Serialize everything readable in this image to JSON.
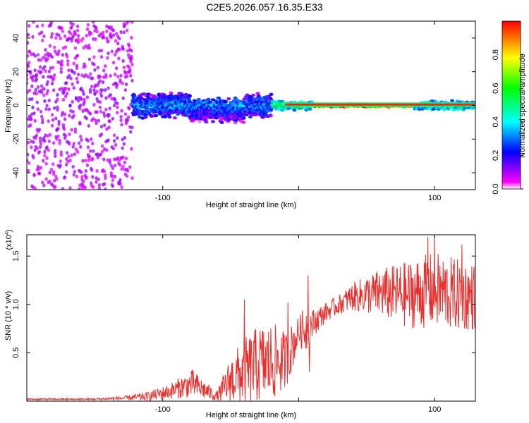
{
  "title": "C2E5.2026.057.16.35.E33",
  "chart_data": [
    {
      "type": "heatmap",
      "name": "spectrogram",
      "xlabel": "Height of straight line (km)",
      "ylabel": "Frequency (Hz)",
      "xlim": [
        -200,
        130
      ],
      "ylim": [
        -50,
        50
      ],
      "xticks": [
        -100,
        0,
        100
      ],
      "xtick_labels": [
        "-100",
        "",
        "100"
      ],
      "yticks": [
        -40,
        -20,
        0,
        20,
        40
      ],
      "ytick_labels": [
        "-40",
        "-20",
        "0",
        "20",
        "40"
      ],
      "colorbar": {
        "label": "Normalized spectral amplitude",
        "range": [
          0,
          1
        ],
        "ticks": [
          0.0,
          0.2,
          0.4,
          0.6,
          0.8
        ],
        "tick_labels": [
          "0.0",
          "0.2",
          "0.4",
          "0.6",
          "0.8"
        ],
        "colors": [
          "#ffffff",
          "#ff00ff",
          "#0000ff",
          "#00ffff",
          "#00ff00",
          "#ffff00",
          "#ff0000"
        ]
      },
      "regions": [
        {
          "x": [
            -200,
            -122
          ],
          "freq_spread": 50,
          "amplitude": 0.12,
          "description": "broadband noise"
        },
        {
          "x": [
            -122,
            -20
          ],
          "freq_spread": 8,
          "amplitude": 0.35
        },
        {
          "x": [
            -20,
            10
          ],
          "freq_spread": 3,
          "amplitude": 0.55
        },
        {
          "x": [
            10,
            85
          ],
          "freq_spread": 1,
          "amplitude": 0.95
        },
        {
          "x": [
            85,
            130
          ],
          "freq_spread": 3,
          "amplitude": 0.5
        }
      ]
    },
    {
      "type": "line",
      "name": "snr",
      "xlabel": "Height of straight line (km)",
      "ylabel": "SNR (10 * v/v)",
      "multiplier_label": "(x10",
      "multiplier_exponent": "4",
      "multiplier_close": ")",
      "xlim": [
        -200,
        130
      ],
      "ylim": [
        0,
        1.72
      ],
      "xticks": [
        -100,
        0,
        100
      ],
      "xtick_labels": [
        "-100",
        "",
        "100"
      ],
      "yticks": [
        0.5,
        1.0,
        1.5
      ],
      "ytick_labels": [
        "0.5",
        "1.0",
        "1.5"
      ],
      "color": "#e8302e",
      "envelope": {
        "x": [
          -200,
          -150,
          -130,
          -110,
          -95,
          -85,
          -78,
          -70,
          -60,
          -50,
          -40,
          -30,
          -20,
          -10,
          -5,
          0,
          5,
          10,
          20,
          30,
          40,
          60,
          80,
          100,
          115,
          130
        ],
        "mean": [
          0.02,
          0.02,
          0.03,
          0.05,
          0.1,
          0.15,
          0.18,
          0.12,
          0.05,
          0.22,
          0.3,
          0.38,
          0.4,
          0.42,
          0.55,
          0.72,
          0.75,
          0.8,
          0.92,
          1.0,
          1.08,
          1.12,
          1.1,
          1.15,
          1.1,
          1.08
        ],
        "spread": [
          0.01,
          0.01,
          0.02,
          0.05,
          0.08,
          0.12,
          0.15,
          0.1,
          0.05,
          0.25,
          0.35,
          0.4,
          0.42,
          0.3,
          0.25,
          0.15,
          0.25,
          0.15,
          0.1,
          0.1,
          0.15,
          0.25,
          0.35,
          0.4,
          0.38,
          0.35
        ]
      },
      "spikes": [
        {
          "x": -40,
          "y": 1.05
        },
        {
          "x": -8,
          "y": 1.02
        },
        {
          "x": 7,
          "y": 1.3
        },
        {
          "x": 8,
          "y": 0.3
        },
        {
          "x": 95,
          "y": 1.7
        },
        {
          "x": 100,
          "y": 1.72
        },
        {
          "x": 120,
          "y": 1.62
        }
      ]
    }
  ]
}
